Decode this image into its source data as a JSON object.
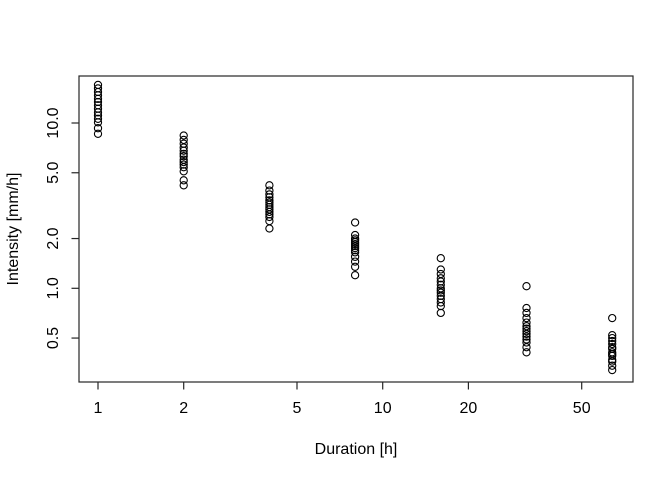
{
  "chart_data": {
    "type": "scatter",
    "title": "",
    "xlabel": "Duration [h]",
    "ylabel": "Intensity [mm/h]",
    "x_scale": "log",
    "y_scale": "log",
    "grid": false,
    "legend": "none",
    "marker": "open-circle",
    "marker_color": "#000000",
    "x_ticks": [
      {
        "value": 1,
        "label": "1"
      },
      {
        "value": 2,
        "label": "2"
      },
      {
        "value": 5,
        "label": "5"
      },
      {
        "value": 10,
        "label": "10"
      },
      {
        "value": 20,
        "label": "20"
      },
      {
        "value": 50,
        "label": "50"
      }
    ],
    "y_ticks": [
      {
        "value": 0.5,
        "label": "0.5"
      },
      {
        "value": 1.0,
        "label": "1.0"
      },
      {
        "value": 2.0,
        "label": "2.0"
      },
      {
        "value": 5.0,
        "label": "5.0"
      },
      {
        "value": 10.0,
        "label": "10.0"
      }
    ],
    "xlim": [
      0.86,
      75.7
    ],
    "ylim": [
      0.27,
      19.2
    ],
    "series": [
      {
        "duration": 1,
        "values": [
          17.0,
          16.2,
          15.4,
          14.7,
          14.0,
          13.4,
          12.8,
          12.2,
          11.6,
          11.1,
          10.6,
          10.1,
          9.3,
          8.6
        ]
      },
      {
        "duration": 2,
        "values": [
          8.4,
          7.9,
          7.5,
          7.1,
          6.8,
          6.5,
          6.3,
          6.0,
          5.8,
          5.6,
          5.4,
          5.1,
          4.5,
          4.2
        ]
      },
      {
        "duration": 4,
        "values": [
          4.2,
          3.9,
          3.7,
          3.55,
          3.4,
          3.3,
          3.2,
          3.1,
          3.0,
          2.9,
          2.8,
          2.7,
          2.55,
          2.3
        ]
      },
      {
        "duration": 8,
        "values": [
          2.5,
          2.1,
          2.0,
          1.95,
          1.9,
          1.85,
          1.8,
          1.75,
          1.7,
          1.65,
          1.55,
          1.45,
          1.35,
          1.2
        ]
      },
      {
        "duration": 16,
        "values": [
          1.52,
          1.3,
          1.22,
          1.15,
          1.1,
          1.05,
          1.0,
          0.97,
          0.94,
          0.9,
          0.86,
          0.82,
          0.78,
          0.71
        ]
      },
      {
        "duration": 32,
        "values": [
          1.03,
          0.76,
          0.71,
          0.66,
          0.62,
          0.59,
          0.57,
          0.55,
          0.53,
          0.51,
          0.49,
          0.47,
          0.44,
          0.41
        ]
      },
      {
        "duration": 64,
        "values": [
          0.66,
          0.52,
          0.5,
          0.48,
          0.46,
          0.44,
          0.43,
          0.41,
          0.4,
          0.39,
          0.37,
          0.36,
          0.34,
          0.32
        ]
      }
    ]
  }
}
